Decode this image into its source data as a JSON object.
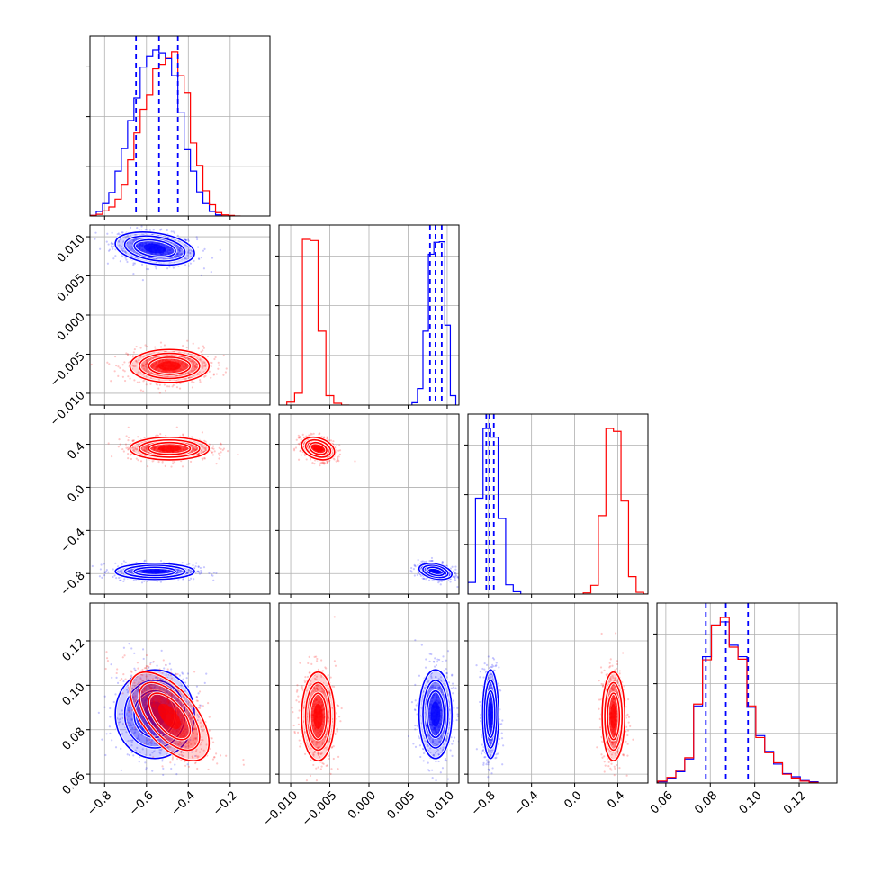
{
  "colors": {
    "blue": "#0000ff",
    "red": "#ff0000",
    "grid": "#b0b0b0",
    "frame": "#000000"
  },
  "params": [
    {
      "range": [
        -0.87,
        -0.01
      ],
      "ticks": [
        -0.8,
        -0.6,
        -0.4,
        -0.2
      ],
      "tick_labels": [
        "−0.8",
        "−0.6",
        "−0.4",
        "−0.2"
      ]
    },
    {
      "range": [
        -0.0115,
        0.0115
      ],
      "ticks": [
        -0.01,
        -0.005,
        0.0,
        0.005,
        0.01
      ],
      "tick_labels": [
        "−0.010",
        "−0.005",
        "0.000",
        "0.005",
        "0.010"
      ]
    },
    {
      "range": [
        -0.99,
        0.68
      ],
      "ticks": [
        -0.8,
        -0.4,
        0.0,
        0.4
      ],
      "tick_labels": [
        "−0.8",
        "−0.4",
        "0.0",
        "0.4"
      ]
    },
    {
      "range": [
        0.056,
        0.137
      ],
      "ticks": [
        0.06,
        0.08,
        0.1,
        0.12
      ],
      "tick_labels": [
        "0.06",
        "0.08",
        "0.10",
        "0.12"
      ]
    }
  ],
  "chart_data": {
    "type": "corner",
    "grid": true,
    "series": [
      {
        "color": "blue",
        "means": [
          -0.56,
          0.0085,
          -0.78,
          0.087
        ],
        "stds": [
          0.09,
          0.001,
          0.035,
          0.0095
        ],
        "correlations": [
          [
            0,
            1,
            -0.3
          ],
          [
            0,
            3,
            0.0
          ],
          [
            1,
            2,
            -0.35
          ],
          [
            1,
            3,
            0.0
          ],
          [
            2,
            3,
            0.0
          ],
          [
            0,
            2,
            0.0
          ]
        ],
        "quantiles": [
          [
            -0.65,
            -0.54,
            -0.45
          ],
          [
            0.0078,
            0.0085,
            0.0093
          ],
          [
            -0.82,
            -0.79,
            -0.75
          ],
          [
            0.078,
            0.087,
            0.097
          ]
        ],
        "histograms": [
          {
            "edges": [
              -0.87,
              -0.84,
              -0.81,
              -0.78,
              -0.75,
              -0.72,
              -0.69,
              -0.66,
              -0.63,
              -0.6,
              -0.57,
              -0.54,
              -0.51,
              -0.48,
              -0.45,
              -0.42,
              -0.39,
              -0.36,
              -0.33,
              -0.3,
              -0.27,
              -0.24
            ],
            "counts": [
              1,
              8,
              22,
              42,
              80,
              120,
              170,
              210,
              265,
              285,
              295,
              290,
              280,
              250,
              185,
              118,
              80,
              43,
              22,
              8,
              2
            ]
          },
          {
            "edges": [
              0.0055,
              0.0062,
              0.0069,
              0.0076,
              0.0083,
              0.009,
              0.0097,
              0.0104,
              0.0111
            ],
            "counts": [
              4,
              28,
              125,
              255,
              275,
              276,
              135,
              16
            ]
          },
          {
            "edges": [
              -0.99,
              -0.92,
              -0.85,
              -0.78,
              -0.71,
              -0.64,
              -0.57,
              -0.5
            ],
            "counts": [
              20,
              165,
              285,
              270,
              130,
              16,
              4
            ]
          },
          {
            "edges": [
              0.0565,
              0.0605,
              0.0645,
              0.0685,
              0.0725,
              0.0765,
              0.0805,
              0.0845,
              0.0885,
              0.0925,
              0.0965,
              0.1005,
              0.1045,
              0.1085,
              0.1125,
              0.1165,
              0.1205,
              0.1245,
              0.1285
            ],
            "counts": [
              2,
              8,
              18,
              38,
              122,
              200,
              250,
              255,
              218,
              200,
              120,
              75,
              50,
              30,
              15,
              10,
              4,
              2
            ]
          }
        ]
      },
      {
        "color": "red",
        "means": [
          -0.49,
          -0.0065,
          0.36,
          0.086
        ],
        "stds": [
          0.09,
          0.001,
          0.05,
          0.0095
        ],
        "correlations": [
          [
            0,
            1,
            0.0
          ],
          [
            0,
            3,
            -0.6
          ],
          [
            1,
            2,
            -0.3
          ],
          [
            1,
            3,
            0.0
          ],
          [
            2,
            3,
            0.0
          ],
          [
            0,
            2,
            0.0
          ]
        ],
        "histograms": [
          {
            "edges": [
              -0.87,
              -0.84,
              -0.81,
              -0.78,
              -0.75,
              -0.72,
              -0.69,
              -0.66,
              -0.63,
              -0.6,
              -0.57,
              -0.54,
              -0.51,
              -0.48,
              -0.45,
              -0.42,
              -0.39,
              -0.36,
              -0.33,
              -0.3,
              -0.27,
              -0.24,
              -0.21,
              -0.18,
              -0.15
            ],
            "counts": [
              1,
              3,
              9,
              16,
              30,
              55,
              100,
              148,
              190,
              215,
              262,
              270,
              282,
              292,
              250,
              220,
              130,
              90,
              45,
              20,
              6,
              2,
              1,
              0
            ]
          },
          {
            "edges": [
              -0.0105,
              -0.0095,
              -0.0085,
              -0.0075,
              -0.0065,
              -0.0055,
              -0.0045,
              -0.0035,
              -0.0025
            ],
            "counts": [
              5,
              20,
              280,
              278,
              125,
              16,
              3,
              0
            ]
          },
          {
            "edges": [
              0.08,
              0.15,
              0.22,
              0.29,
              0.36,
              0.43,
              0.5,
              0.57,
              0.64,
              0.71
            ],
            "counts": [
              2,
              15,
              135,
              285,
              280,
              160,
              30,
              3,
              0
            ]
          },
          {
            "edges": [
              0.0565,
              0.0605,
              0.0645,
              0.0685,
              0.0725,
              0.0765,
              0.0805,
              0.0845,
              0.0885,
              0.0925,
              0.0965,
              0.1005,
              0.1045,
              0.1085,
              0.1125,
              0.1165,
              0.1205,
              0.1245,
              0.1285
            ],
            "counts": [
              3,
              9,
              20,
              40,
              125,
              195,
              250,
              262,
              215,
              196,
              122,
              72,
              48,
              32,
              14,
              8,
              3,
              1
            ]
          }
        ]
      }
    ]
  }
}
